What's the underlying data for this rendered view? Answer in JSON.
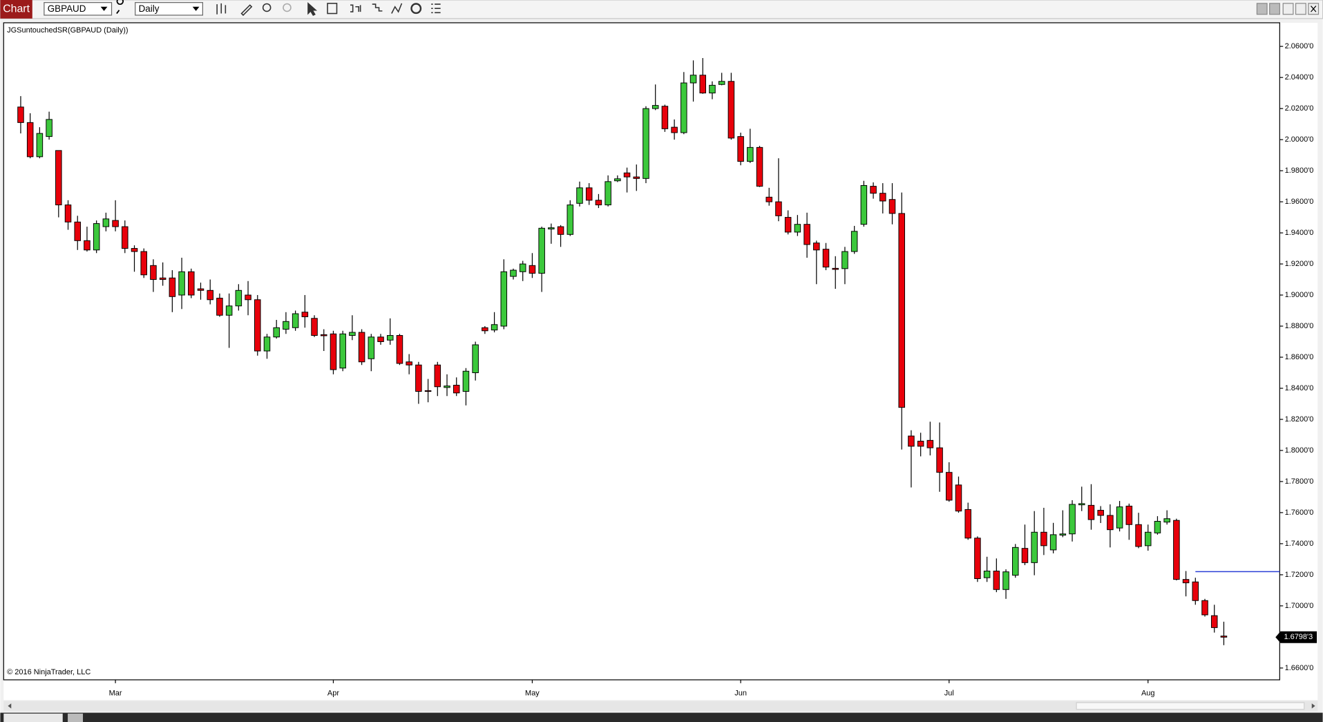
{
  "toolbar": {
    "tab": "Chart",
    "instrument": "GBPAUD",
    "interval": "Daily"
  },
  "chart_data": {
    "type": "candlestick",
    "title": "JGSuntouchedSR(GBPAUD (Daily))",
    "credit": "© 2016 NinjaTrader, LLC",
    "up_color": "#3cc83c",
    "down_color": "#e8000b",
    "xlim": [
      -1.8,
      132.9
    ],
    "xticks": [
      {
        "value": 10,
        "label": "Mar"
      },
      {
        "value": 33,
        "label": "Apr"
      },
      {
        "value": 54,
        "label": "May"
      },
      {
        "value": 76,
        "label": "Jun"
      },
      {
        "value": 98,
        "label": "Jul"
      },
      {
        "value": 119,
        "label": "Aug"
      }
    ],
    "ylim": [
      1.6524,
      2.0752
    ],
    "yticks": [
      {
        "value": 1.66,
        "label": "1.6600'0"
      },
      {
        "value": 1.68,
        "label": "1.6800'0"
      },
      {
        "value": 1.7,
        "label": "1.7000'0"
      },
      {
        "value": 1.72,
        "label": "1.7200'0"
      },
      {
        "value": 1.74,
        "label": "1.7400'0"
      },
      {
        "value": 1.76,
        "label": "1.7600'0"
      },
      {
        "value": 1.78,
        "label": "1.7800'0"
      },
      {
        "value": 1.8,
        "label": "1.8000'0"
      },
      {
        "value": 1.82,
        "label": "1.8200'0"
      },
      {
        "value": 1.84,
        "label": "1.8400'0"
      },
      {
        "value": 1.86,
        "label": "1.8600'0"
      },
      {
        "value": 1.88,
        "label": "1.8800'0"
      },
      {
        "value": 1.9,
        "label": "1.9000'0"
      },
      {
        "value": 1.92,
        "label": "1.9200'0"
      },
      {
        "value": 1.94,
        "label": "1.9400'0"
      },
      {
        "value": 1.96,
        "label": "1.9600'0"
      },
      {
        "value": 1.98,
        "label": "1.9800'0"
      },
      {
        "value": 2.0,
        "label": "2.0000'0"
      },
      {
        "value": 2.02,
        "label": "2.0200'0"
      },
      {
        "value": 2.04,
        "label": "2.0400'0"
      },
      {
        "value": 2.06,
        "label": "2.0600'0"
      }
    ],
    "last_price": {
      "value": 1.67983,
      "label": "1.6798'3"
    },
    "sr_levels": [
      {
        "value": 1.722,
        "from_index": 124,
        "color": "#2a3fd6"
      }
    ],
    "open": [
      2.021,
      2.011,
      1.989,
      2.002,
      1.993,
      1.958,
      1.947,
      1.935,
      1.929,
      1.944,
      1.948,
      1.944,
      1.93,
      1.928,
      1.919,
      1.911,
      1.911,
      1.9,
      1.915,
      1.904,
      1.903,
      1.898,
      1.887,
      1.893,
      1.9,
      1.897,
      1.864,
      1.873,
      1.878,
      1.879,
      1.889,
      1.885,
      1.8745,
      1.875,
      1.853,
      1.874,
      1.876,
      1.859,
      1.873,
      1.871,
      1.874,
      1.857,
      1.855,
      1.8385,
      1.855,
      1.8405,
      1.842,
      1.838,
      1.85,
      1.879,
      1.8775,
      1.88,
      1.912,
      1.915,
      1.919,
      1.914,
      1.9425,
      1.944,
      1.939,
      1.959,
      1.969,
      1.961,
      1.958,
      1.9735,
      1.9786,
      1.976,
      1.975,
      2.02,
      2.0215,
      2.008,
      2.0045,
      2.0365,
      2.0415,
      2.03,
      2.0355,
      2.0375,
      2.002,
      1.986,
      1.995,
      1.963,
      1.96,
      1.95,
      1.9405,
      1.9455,
      1.9335,
      1.9295,
      1.9172,
      1.917,
      1.928,
      1.9455,
      1.97,
      1.9655,
      1.9615,
      1.9525,
      1.8093,
      1.806,
      1.8065,
      1.8017,
      1.7859,
      1.7778,
      1.762,
      1.7436,
      1.7181,
      1.7224,
      1.7105,
      1.7197,
      1.737,
      1.7278,
      1.7474,
      1.736,
      1.7455,
      1.7463,
      1.765,
      1.7647,
      1.7615,
      1.7582,
      1.7501,
      1.7642,
      1.7523,
      1.7387,
      1.7469,
      1.7539,
      1.755,
      1.717,
      1.7154,
      1.7034,
      1.6937,
      1.6806
    ],
    "high": [
      2.028,
      2.017,
      2.008,
      2.018,
      1.993,
      1.961,
      1.951,
      1.944,
      1.948,
      1.953,
      1.961,
      1.948,
      1.932,
      1.93,
      1.923,
      1.921,
      1.916,
      1.924,
      1.917,
      1.908,
      1.91,
      1.901,
      1.901,
      1.907,
      1.909,
      1.9,
      1.875,
      1.884,
      1.889,
      1.89,
      1.9,
      1.887,
      1.878,
      1.877,
      1.877,
      1.887,
      1.878,
      1.875,
      1.875,
      1.885,
      1.875,
      1.862,
      1.857,
      1.846,
      1.857,
      1.849,
      1.847,
      1.853,
      1.87,
      1.88,
      1.889,
      1.923,
      1.917,
      1.922,
      1.927,
      1.944,
      1.946,
      1.945,
      1.961,
      1.973,
      1.972,
      1.965,
      1.977,
      1.977,
      1.982,
      1.984,
      2.0215,
      2.0355,
      2.0225,
      2.013,
      2.0435,
      2.051,
      2.0525,
      2.0375,
      2.043,
      2.043,
      2.0045,
      2.007,
      1.996,
      1.969,
      1.988,
      1.9545,
      1.9515,
      1.953,
      1.935,
      1.9335,
      1.925,
      1.931,
      1.9445,
      1.9735,
      1.9725,
      1.972,
      1.972,
      1.966,
      1.813,
      1.8114,
      1.8185,
      1.818,
      1.7924,
      1.7832,
      1.7664,
      1.7447,
      1.7316,
      1.7305,
      1.7235,
      1.7398,
      1.7523,
      1.761,
      1.7631,
      1.7534,
      1.7615,
      1.768,
      1.7767,
      1.7783,
      1.7642,
      1.7653,
      1.7675,
      1.7658,
      1.7599,
      1.7523,
      1.7577,
      1.7615,
      1.7561,
      1.7224,
      1.7181,
      1.7045,
      1.7007,
      1.6898
    ],
    "low": [
      2.004,
      1.988,
      1.988,
      2.0,
      1.95,
      1.942,
      1.929,
      1.928,
      1.927,
      1.941,
      1.941,
      1.927,
      1.915,
      1.911,
      1.902,
      1.906,
      1.889,
      1.891,
      1.898,
      1.897,
      1.894,
      1.886,
      1.866,
      1.89,
      1.887,
      1.861,
      1.859,
      1.872,
      1.875,
      1.877,
      1.879,
      1.873,
      1.864,
      1.849,
      1.851,
      1.871,
      1.855,
      1.851,
      1.868,
      1.868,
      1.855,
      1.849,
      1.83,
      1.831,
      1.835,
      1.835,
      1.835,
      1.829,
      1.845,
      1.875,
      1.876,
      1.878,
      1.91,
      1.909,
      1.911,
      1.902,
      1.933,
      1.931,
      1.938,
      1.957,
      1.958,
      1.956,
      1.957,
      1.9727,
      1.966,
      1.967,
      1.972,
      2.019,
      2.005,
      2.0,
      2.0035,
      2.0245,
      2.0295,
      2.026,
      2.035,
      2.0,
      1.9835,
      1.985,
      1.9695,
      1.9575,
      1.9475,
      1.939,
      1.938,
      1.924,
      1.907,
      1.916,
      1.904,
      1.907,
      1.9265,
      1.944,
      1.962,
      1.9525,
      1.9455,
      1.8006,
      1.7762,
      1.7962,
      1.7968,
      1.7734,
      1.767,
      1.7599,
      1.7425,
      1.7154,
      1.7154,
      1.7088,
      1.7045,
      1.7181,
      1.7262,
      1.7197,
      1.7327,
      1.7338,
      1.7442,
      1.7414,
      1.761,
      1.749,
      1.7533,
      1.7376,
      1.7479,
      1.7425,
      1.7371,
      1.7355,
      1.7458,
      1.7523,
      1.7164,
      1.7061,
      1.7007,
      1.6931,
      1.6828,
      1.6747
    ],
    "close": [
      2.011,
      1.989,
      2.004,
      2.013,
      1.958,
      1.947,
      1.935,
      1.929,
      1.946,
      1.949,
      1.944,
      1.93,
      1.928,
      1.913,
      1.91,
      1.91,
      1.899,
      1.915,
      1.9,
      1.903,
      1.897,
      1.887,
      1.893,
      1.903,
      1.897,
      1.864,
      1.873,
      1.879,
      1.883,
      1.888,
      1.886,
      1.874,
      1.8738,
      1.852,
      1.875,
      1.876,
      1.857,
      1.873,
      1.87,
      1.874,
      1.856,
      1.855,
      1.838,
      1.838,
      1.841,
      1.8415,
      1.837,
      1.851,
      1.868,
      1.877,
      1.881,
      1.915,
      1.916,
      1.92,
      1.914,
      1.943,
      1.9433,
      1.939,
      1.958,
      1.969,
      1.961,
      1.958,
      1.973,
      1.9748,
      1.976,
      1.975,
      2.02,
      2.022,
      2.007,
      2.0045,
      2.0365,
      2.0415,
      2.03,
      2.035,
      2.0375,
      2.001,
      1.986,
      1.995,
      1.97,
      1.96,
      1.951,
      1.9405,
      1.9455,
      1.9325,
      1.929,
      1.918,
      1.9165,
      1.928,
      1.941,
      1.9705,
      1.9655,
      1.9605,
      1.9525,
      1.8277,
      1.8027,
      1.8027,
      1.8017,
      1.7859,
      1.768,
      1.761,
      1.7436,
      1.7175,
      1.7224,
      1.7105,
      1.7219,
      1.7376,
      1.7278,
      1.7474,
      1.7387,
      1.7458,
      1.7463,
      1.7653,
      1.7658,
      1.7555,
      1.7582,
      1.749,
      1.7637,
      1.7523,
      1.7382,
      1.7474,
      1.7544,
      1.7561,
      1.717,
      1.7148,
      1.7034,
      1.6942,
      1.686,
      1.67983
    ]
  }
}
